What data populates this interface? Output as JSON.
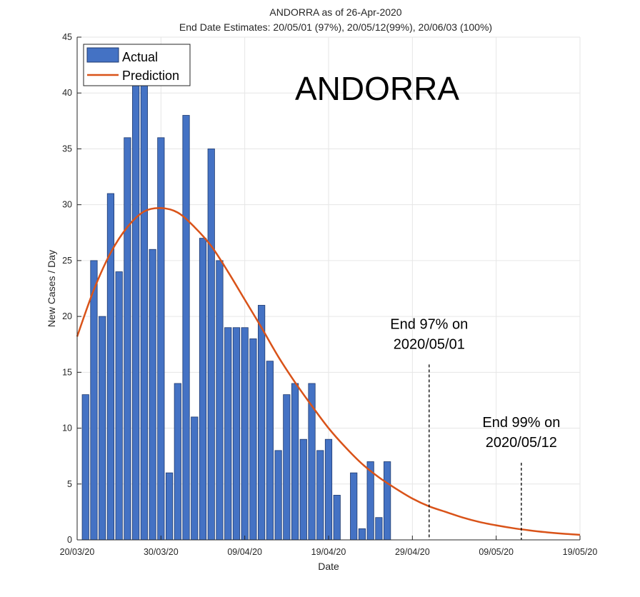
{
  "chart_data": {
    "type": "bar",
    "title": "ANDORRA as of 26-Apr-2020",
    "subtitle": "End Date Estimates: 20/05/01 (97%), 20/05/12(99%), 20/06/03 (100%)",
    "xlabel": "Date",
    "ylabel": "New Cases / Day",
    "xlim": [
      "2020-03-20",
      "2020-05-19"
    ],
    "ylim": [
      0,
      45
    ],
    "yticks": [
      0,
      5,
      10,
      15,
      20,
      25,
      30,
      35,
      40,
      45
    ],
    "xticks": [
      {
        "date": "2020-03-20",
        "label": "20/03/20"
      },
      {
        "date": "2020-03-30",
        "label": "30/03/20"
      },
      {
        "date": "2020-04-09",
        "label": "09/04/20"
      },
      {
        "date": "2020-04-19",
        "label": "19/04/20"
      },
      {
        "date": "2020-04-29",
        "label": "29/04/20"
      },
      {
        "date": "2020-05-09",
        "label": "09/05/20"
      },
      {
        "date": "2020-05-19",
        "label": "19/05/20"
      }
    ],
    "grid": true,
    "legend_position": "top-left",
    "country_label": "ANDORRA",
    "series": [
      {
        "name": "Actual",
        "kind": "bar",
        "color": "#4472C4",
        "x": [
          "2020-03-21",
          "2020-03-22",
          "2020-03-23",
          "2020-03-24",
          "2020-03-25",
          "2020-03-26",
          "2020-03-27",
          "2020-03-28",
          "2020-03-29",
          "2020-03-30",
          "2020-03-31",
          "2020-04-01",
          "2020-04-02",
          "2020-04-03",
          "2020-04-04",
          "2020-04-05",
          "2020-04-06",
          "2020-04-07",
          "2020-04-08",
          "2020-04-09",
          "2020-04-10",
          "2020-04-11",
          "2020-04-12",
          "2020-04-13",
          "2020-04-14",
          "2020-04-15",
          "2020-04-16",
          "2020-04-17",
          "2020-04-18",
          "2020-04-19",
          "2020-04-20",
          "2020-04-21",
          "2020-04-22",
          "2020-04-23",
          "2020-04-24",
          "2020-04-25",
          "2020-04-26"
        ],
        "values": [
          13,
          25,
          20,
          31,
          24,
          36,
          43,
          43,
          26,
          36,
          6,
          14,
          38,
          11,
          27,
          35,
          25,
          19,
          19,
          19,
          18,
          21,
          16,
          8,
          13,
          14,
          9,
          14,
          8,
          9,
          4,
          0,
          6,
          1,
          7,
          2,
          7
        ]
      },
      {
        "name": "Prediction",
        "kind": "line",
        "color": "#D95319",
        "x": [
          "2020-03-20",
          "2020-03-22",
          "2020-03-24",
          "2020-03-26",
          "2020-03-28",
          "2020-03-30",
          "2020-04-01",
          "2020-04-03",
          "2020-04-05",
          "2020-04-07",
          "2020-04-09",
          "2020-04-11",
          "2020-04-13",
          "2020-04-15",
          "2020-04-17",
          "2020-04-19",
          "2020-04-21",
          "2020-04-23",
          "2020-04-25",
          "2020-04-27",
          "2020-04-29",
          "2020-05-01",
          "2020-05-03",
          "2020-05-05",
          "2020-05-07",
          "2020-05-09",
          "2020-05-11",
          "2020-05-13",
          "2020-05-15",
          "2020-05-17",
          "2020-05-19"
        ],
        "values": [
          18.2,
          22.4,
          25.7,
          28.0,
          29.4,
          29.7,
          29.3,
          28.0,
          26.3,
          24.0,
          21.5,
          19.0,
          16.4,
          14.1,
          12.0,
          10.0,
          8.3,
          6.8,
          5.6,
          4.6,
          3.7,
          3.0,
          2.5,
          2.0,
          1.6,
          1.3,
          1.05,
          0.85,
          0.68,
          0.55,
          0.45
        ]
      }
    ],
    "annotations": [
      {
        "date": "2020-05-01",
        "y_top": 15.7,
        "text_lines": [
          "End 97% on",
          "2020/05/01"
        ]
      },
      {
        "date": "2020-05-12",
        "y_top": 6.9,
        "text_lines": [
          "End 99% on",
          "2020/05/12"
        ]
      }
    ]
  }
}
